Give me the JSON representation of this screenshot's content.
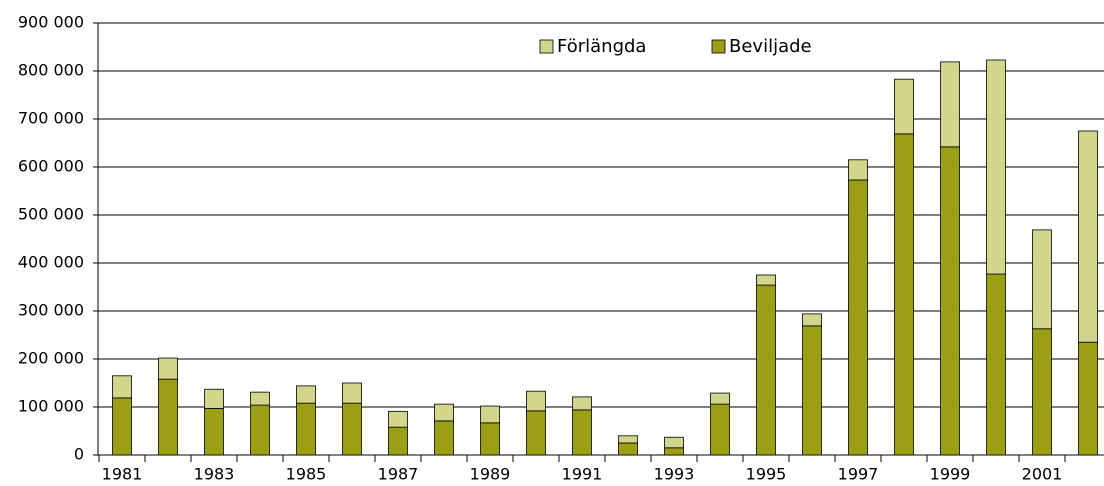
{
  "chart_data": {
    "type": "stacked_bar",
    "categories": [
      "1981",
      null,
      "1983",
      null,
      "1985",
      null,
      "1987",
      null,
      "1989",
      null,
      "1991",
      null,
      "1993",
      null,
      "1995",
      null,
      "1997",
      null,
      "1999",
      null,
      "2001",
      null
    ],
    "series": [
      {
        "name": "Beviljade",
        "color": "#9c9e14",
        "values": [
          119000,
          158000,
          97000,
          104000,
          108000,
          108000,
          58000,
          71000,
          67000,
          92000,
          94000,
          25000,
          15000,
          106000,
          354000,
          269000,
          573000,
          669000,
          642000,
          377000,
          263000,
          235000
        ]
      },
      {
        "name": "Förlängda",
        "color": "#d2d68c",
        "values": [
          46000,
          44000,
          40000,
          27000,
          36000,
          42000,
          33000,
          35000,
          35000,
          41000,
          27000,
          15000,
          22000,
          23000,
          21000,
          25000,
          42000,
          114000,
          177000,
          446000,
          206000,
          440000
        ]
      }
    ],
    "ylim": [
      0,
      900000
    ],
    "yticks": [
      {
        "value": 0,
        "label": "0"
      },
      {
        "value": 100000,
        "label": "100 000"
      },
      {
        "value": 200000,
        "label": "200 000"
      },
      {
        "value": 300000,
        "label": "300 000"
      },
      {
        "value": 400000,
        "label": "400 000"
      },
      {
        "value": 500000,
        "label": "500 000"
      },
      {
        "value": 600000,
        "label": "600 000"
      },
      {
        "value": 700000,
        "label": "700 000"
      },
      {
        "value": 800000,
        "label": "800 000"
      },
      {
        "value": 900000,
        "label": "900 000"
      }
    ],
    "grid": true,
    "legend": "upper center"
  }
}
